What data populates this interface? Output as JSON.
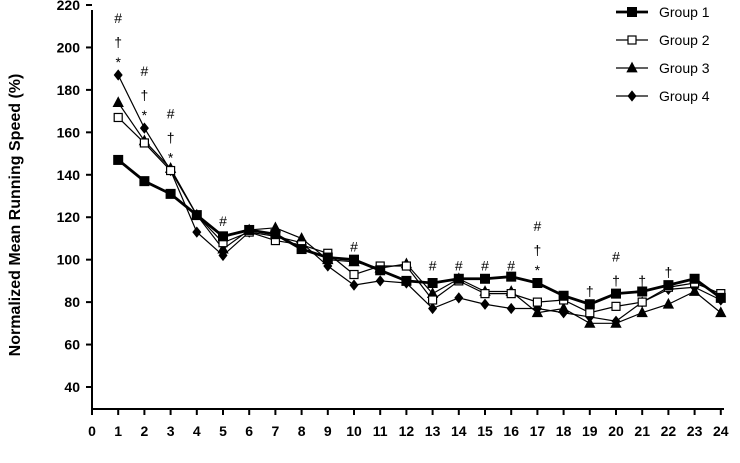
{
  "chart_data": {
    "type": "line",
    "title": "",
    "xlabel": "",
    "ylabel": "Normalized Mean Running Speed (%)",
    "x": [
      1,
      2,
      3,
      4,
      5,
      6,
      7,
      8,
      9,
      10,
      11,
      12,
      13,
      14,
      15,
      16,
      17,
      18,
      19,
      20,
      21,
      22,
      23,
      24
    ],
    "x_ticks": [
      "0",
      "1",
      "2",
      "3",
      "4",
      "5",
      "6",
      "7",
      "8",
      "9",
      "10",
      "11",
      "12",
      "13",
      "14",
      "15",
      "16",
      "17",
      "18",
      "19",
      "20",
      "21",
      "22",
      "23",
      "24"
    ],
    "y_ticks": [
      "40",
      "60",
      "80",
      "100",
      "120",
      "140",
      "160",
      "180",
      "200",
      "220"
    ],
    "xlim": [
      0,
      24
    ],
    "ylim": [
      30,
      220
    ],
    "grid": false,
    "legend_position": "top-right",
    "series": [
      {
        "name": "Group 1",
        "marker": "square-filled",
        "color": "#000000",
        "values": [
          147,
          137,
          131,
          121,
          111,
          114,
          112,
          105,
          101,
          100,
          95,
          90,
          89,
          91,
          91,
          92,
          89,
          83,
          79,
          84,
          85,
          88,
          91,
          82
        ]
      },
      {
        "name": "Group 2",
        "marker": "square-open",
        "color": "#000000",
        "values": [
          167,
          155,
          142,
          121,
          108,
          113,
          109,
          107,
          103,
          93,
          97,
          97,
          81,
          90,
          84,
          84,
          80,
          81,
          75,
          78,
          80,
          87,
          89,
          84
        ]
      },
      {
        "name": "Group 3",
        "marker": "triangle-filled",
        "color": "#000000",
        "values": [
          174,
          156,
          143,
          121,
          105,
          114,
          115,
          110,
          100,
          99,
          96,
          98,
          84,
          91,
          85,
          85,
          75,
          77,
          70,
          70,
          75,
          79,
          85,
          75
        ]
      },
      {
        "name": "Group 4",
        "marker": "diamond-filled",
        "color": "#000000",
        "values": [
          187,
          162,
          142,
          113,
          102,
          113,
          111,
          108,
          97,
          88,
          90,
          89,
          77,
          82,
          79,
          77,
          77,
          75,
          73,
          71,
          80,
          86,
          87,
          81
        ]
      }
    ],
    "annotations": [
      {
        "x": 1,
        "symbols": [
          "*",
          "†",
          "#"
        ],
        "base_y": 189
      },
      {
        "x": 2,
        "symbols": [
          "*",
          "†",
          "#"
        ],
        "base_y": 164
      },
      {
        "x": 3,
        "symbols": [
          "*",
          "†",
          "#"
        ],
        "base_y": 144
      },
      {
        "x": 5,
        "symbols": [
          "#"
        ],
        "base_y": 114
      },
      {
        "x": 10,
        "symbols": [
          "#"
        ],
        "base_y": 102
      },
      {
        "x": 13,
        "symbols": [
          "#"
        ],
        "base_y": 93
      },
      {
        "x": 14,
        "symbols": [
          "#"
        ],
        "base_y": 93
      },
      {
        "x": 15,
        "symbols": [
          "#"
        ],
        "base_y": 93
      },
      {
        "x": 16,
        "symbols": [
          "#"
        ],
        "base_y": 93
      },
      {
        "x": 17,
        "symbols": [
          "*",
          "†",
          "#"
        ],
        "base_y": 91
      },
      {
        "x": 19,
        "symbols": [
          "†"
        ],
        "base_y": 81
      },
      {
        "x": 20,
        "symbols": [
          "†",
          "#"
        ],
        "base_y": 86
      },
      {
        "x": 21,
        "symbols": [
          "†"
        ],
        "base_y": 86
      },
      {
        "x": 22,
        "symbols": [
          "†"
        ],
        "base_y": 90
      }
    ]
  }
}
